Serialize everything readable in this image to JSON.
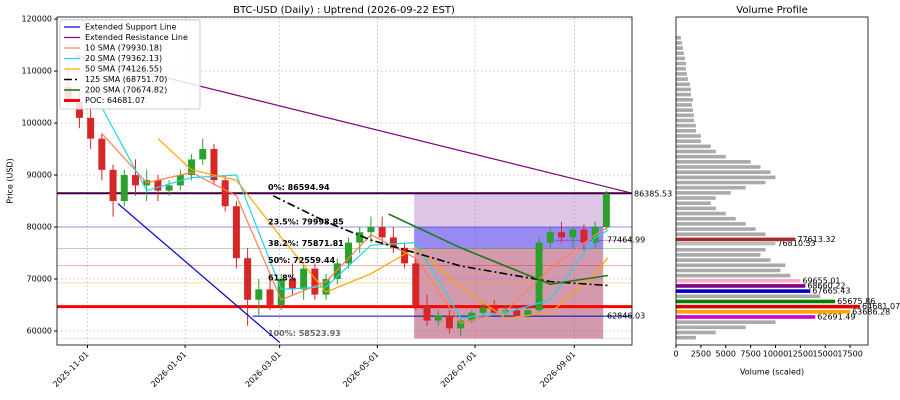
{
  "chart_data": [
    {
      "type": "candlestick",
      "title": "BTC-USD (Daily) : Uptrend (2026-09-22 EST)",
      "ylabel": "Price (USD)",
      "xlim": [
        "2025-10-13",
        "2026-10-07"
      ],
      "ylim": [
        57300,
        120400
      ],
      "xticks": [
        "2025-11-01",
        "2026-01-01",
        "2026-03-01",
        "2026-05-01",
        "2026-07-01",
        "2026-09-01"
      ],
      "yticks": [
        60000,
        70000,
        80000,
        90000,
        100000,
        110000,
        120000
      ],
      "grid": true,
      "legend": "upper left",
      "up_color": "#2ca02c",
      "down_color": "#d62728",
      "x": [
        "2025-10-20",
        "2025-10-27",
        "2025-11-03",
        "2025-11-10",
        "2025-11-17",
        "2025-11-24",
        "2025-12-01",
        "2025-12-08",
        "2025-12-15",
        "2025-12-22",
        "2025-12-29",
        "2026-01-05",
        "2026-01-12",
        "2026-01-19",
        "2026-01-26",
        "2026-02-02",
        "2026-02-09",
        "2026-02-16",
        "2026-02-23",
        "2026-03-02",
        "2026-03-09",
        "2026-03-16",
        "2026-03-23",
        "2026-03-30",
        "2026-04-06",
        "2026-04-13",
        "2026-04-20",
        "2026-04-27",
        "2026-05-04",
        "2026-05-11",
        "2026-05-18",
        "2026-05-25",
        "2026-06-01",
        "2026-06-08",
        "2026-06-15",
        "2026-06-22",
        "2026-06-29",
        "2026-07-06",
        "2026-07-13",
        "2026-07-20",
        "2026-07-27",
        "2026-08-03",
        "2026-08-10",
        "2026-08-17",
        "2026-08-24",
        "2026-08-31",
        "2026-09-07",
        "2026-09-14",
        "2026-09-21"
      ],
      "open": [
        107000,
        104000,
        101000,
        97000,
        91000,
        85000,
        90000,
        88000,
        89000,
        87000,
        88000,
        90000,
        93000,
        95000,
        89000,
        84000,
        74000,
        66000,
        68000,
        65000,
        70000,
        68000,
        72000,
        67000,
        70000,
        73000,
        77000,
        79000,
        80000,
        78000,
        76000,
        73000,
        65000,
        62000,
        63000,
        60500,
        62000,
        63500,
        64500,
        63500,
        64000,
        63000,
        64000,
        77000,
        79000,
        78000,
        79500,
        77000,
        80000
      ],
      "high": [
        111000,
        106000,
        103000,
        98000,
        92000,
        91000,
        93000,
        91000,
        90000,
        89000,
        91000,
        94000,
        97000,
        96000,
        90000,
        85000,
        76000,
        70000,
        70000,
        71000,
        73000,
        73000,
        73000,
        71000,
        74000,
        78000,
        80000,
        82000,
        82000,
        80000,
        77000,
        74000,
        67000,
        64000,
        64000,
        63000,
        64000,
        65500,
        66000,
        65000,
        65000,
        64500,
        78000,
        80000,
        81000,
        80000,
        80500,
        81000,
        87000
      ],
      "low": [
        103000,
        99000,
        95000,
        89000,
        82000,
        84000,
        86000,
        85000,
        85000,
        86000,
        87000,
        89000,
        92000,
        88000,
        83000,
        72000,
        61000,
        63000,
        64000,
        64000,
        67000,
        66000,
        66000,
        66000,
        69000,
        72000,
        75000,
        77000,
        77000,
        75000,
        72000,
        64000,
        61000,
        61000,
        59500,
        59000,
        61500,
        62500,
        63000,
        62500,
        62800,
        62500,
        63500,
        76000,
        77000,
        76000,
        75500,
        76000,
        79500
      ],
      "close": [
        104000,
        101000,
        97000,
        91000,
        85000,
        90000,
        88000,
        89000,
        87000,
        88000,
        90000,
        93000,
        95000,
        89000,
        84000,
        74000,
        66000,
        68000,
        65000,
        70000,
        68000,
        72000,
        67000,
        70000,
        73000,
        77000,
        79000,
        80000,
        78000,
        76000,
        73000,
        65000,
        62000,
        63000,
        60500,
        62000,
        63500,
        64500,
        63500,
        64000,
        63000,
        64000,
        77000,
        79000,
        78000,
        79500,
        77000,
        80000,
        86400
      ],
      "series": [
        {
          "name": "Extended Support Line",
          "color": "#0000cc",
          "width": 1.2,
          "x": [
            "2025-11-20",
            "2026-03-01"
          ],
          "values": [
            84500,
            57800
          ]
        },
        {
          "name": "Extended Resistance Line",
          "color": "#800080",
          "width": 1.2,
          "x": [
            "2025-10-25",
            "2026-10-07"
          ],
          "values": [
            113000,
            86500
          ]
        },
        {
          "name": "10 SMA (79930.18)",
          "color": "#ff7f50",
          "width": 1.2,
          "x": [
            "2025-11-10",
            "2025-12-08",
            "2026-01-05",
            "2026-02-02",
            "2026-03-02",
            "2026-03-30",
            "2026-04-27",
            "2026-05-25",
            "2026-06-22",
            "2026-07-20",
            "2026-08-17",
            "2026-09-14",
            "2026-09-22"
          ],
          "values": [
            98000,
            88500,
            90500,
            86000,
            66000,
            69500,
            78500,
            74000,
            61500,
            63800,
            72000,
            78500,
            79930
          ]
        },
        {
          "name": "20 SMA (79362.13)",
          "color": "#22d3ee",
          "width": 1.2,
          "x": [
            "2025-11-10",
            "2025-12-08",
            "2026-01-05",
            "2026-02-02",
            "2026-03-02",
            "2026-03-30",
            "2026-04-27",
            "2026-05-25",
            "2026-06-22",
            "2026-07-20",
            "2026-08-17",
            "2026-09-14",
            "2026-09-22"
          ],
          "values": [
            103000,
            87000,
            89500,
            90000,
            68000,
            68500,
            76500,
            77000,
            62500,
            63500,
            66000,
            78000,
            79362
          ]
        },
        {
          "name": "50 SMA (74126.55)",
          "color": "#ffa500",
          "width": 1.2,
          "x": [
            "2025-12-15",
            "2026-01-05",
            "2026-02-02",
            "2026-03-02",
            "2026-03-30",
            "2026-04-27",
            "2026-05-25",
            "2026-06-22",
            "2026-07-20",
            "2026-08-17",
            "2026-09-14",
            "2026-09-22"
          ],
          "values": [
            97000,
            91000,
            89000,
            78000,
            67500,
            71000,
            76000,
            68500,
            62500,
            63500,
            71000,
            74127
          ]
        },
        {
          "name": "125 SMA (68751.70)",
          "color": "#000000",
          "width": 1.6,
          "dash": "8,3,2,3",
          "x": [
            "2026-02-25",
            "2026-03-30",
            "2026-04-27",
            "2026-05-25",
            "2026-06-22",
            "2026-07-20",
            "2026-08-17",
            "2026-09-22"
          ],
          "values": [
            86000,
            81000,
            77500,
            75000,
            72500,
            71000,
            69500,
            68752
          ]
        },
        {
          "name": "200 SMA (70674.82)",
          "color": "#1a7a1a",
          "width": 1.6,
          "x": [
            "2026-05-08",
            "2026-06-22",
            "2026-07-20",
            "2026-08-17",
            "2026-09-22"
          ],
          "values": [
            82500,
            76000,
            72500,
            69000,
            70675
          ]
        }
      ],
      "hlines": [
        {
          "name": "POC: 64681.07",
          "value": 64681.07,
          "color": "#ff0000",
          "width": 3
        },
        {
          "value": 86385.53,
          "color": "#000000",
          "width": 1,
          "label": "right"
        },
        {
          "value": 62846.03,
          "color": "#0000cc",
          "width": 1,
          "from": "2026-02-12",
          "label": "inside"
        },
        {
          "value": 77464.99,
          "color": "#800080",
          "width": 0.4,
          "from": "2026-08-20",
          "label": "inside"
        }
      ],
      "fib": [
        {
          "label": "0%: 86594.94",
          "value": 86594.94,
          "color": "#800080"
        },
        {
          "label": "23.5%: 79998.85",
          "value": 79998.85,
          "color": "#0000cc"
        },
        {
          "label": "38.2%: 75871.81",
          "value": 75871.81,
          "color": "#008000"
        },
        {
          "label": "50%: 72559.44",
          "value": 72559.44,
          "color": "#dd0000"
        },
        {
          "label": "61.8%",
          "value": 69247.04,
          "color": "#ffa500"
        },
        {
          "label": "100%: 58523.93",
          "value": 58523.93,
          "color": "#ffaacc"
        }
      ],
      "zones": [
        {
          "x": [
            "2026-05-24",
            "2026-09-19"
          ],
          "range": [
            86594.94,
            58523.93
          ],
          "color": "#9b59b6",
          "opacity": 0.35
        },
        {
          "x": [
            "2026-05-24",
            "2026-09-19"
          ],
          "range": [
            79998.85,
            75871.81
          ],
          "color": "#3333ff",
          "opacity": 0.4
        },
        {
          "x": [
            "2026-05-24",
            "2026-09-19"
          ],
          "range": [
            75871.81,
            58523.93
          ],
          "color": "#c0392b",
          "opacity": 0.3
        }
      ]
    },
    {
      "type": "barh",
      "title": "Volume Profile",
      "xlabel": "Volume (scaled)",
      "xlim": [
        0,
        19300
      ],
      "ylim": [
        57300,
        120400
      ],
      "xticks": [
        0,
        2500,
        5000,
        7500,
        10000,
        12500,
        15000,
        17500
      ],
      "color": "#aaaaaa",
      "levels": [
        58712,
        59707,
        60702,
        61697,
        62691.49,
        63686.28,
        64681.07,
        65675.86,
        66671,
        67665.43,
        68660.22,
        69655.01,
        70650,
        71645,
        72639,
        73634,
        74629,
        75624,
        76810.53,
        77613.32,
        78608,
        79603,
        80598,
        81592,
        82587,
        83582,
        84577,
        85572,
        86566,
        87561,
        88556,
        89551,
        90546,
        91541,
        92535,
        93530,
        94525,
        95520,
        96515,
        97509,
        98504,
        99499,
        100494,
        101489,
        102484,
        103478,
        104473,
        105468,
        106463,
        107458,
        108453,
        109447,
        110442,
        111437,
        112432,
        113427,
        114422,
        115416,
        116411
      ],
      "values": [
        2000,
        4000,
        7000,
        10000,
        14000,
        17500,
        18500,
        16000,
        14500,
        13500,
        13000,
        12500,
        11500,
        10500,
        11000,
        9500,
        8500,
        9000,
        10000,
        12000,
        9000,
        8000,
        7000,
        6000,
        5000,
        4000,
        3500,
        4000,
        5500,
        7000,
        9000,
        10000,
        9500,
        8500,
        7500,
        5000,
        4000,
        3500,
        2500,
        2500,
        2000,
        2000,
        1800,
        1800,
        1700,
        1600,
        1700,
        1500,
        1500,
        1400,
        1200,
        1100,
        1000,
        1000,
        900,
        800,
        700,
        600,
        500
      ],
      "colors": [
        null,
        null,
        null,
        null,
        "#cc00cc",
        "#ffa500",
        "#dd0000",
        "#008000",
        null,
        "#0000cc",
        "#800080",
        "#ffaacc",
        null,
        null,
        null,
        null,
        null,
        null,
        "#bbbbbb",
        "#a52a2a",
        null,
        null,
        null,
        null,
        null,
        null,
        null,
        null,
        null,
        null,
        null,
        null,
        null,
        null,
        null,
        null,
        null,
        null,
        null,
        null,
        null,
        null,
        null,
        null,
        null,
        null,
        null,
        null,
        null,
        null,
        null,
        null,
        null,
        null,
        null,
        null,
        null,
        null,
        null
      ]
    }
  ]
}
